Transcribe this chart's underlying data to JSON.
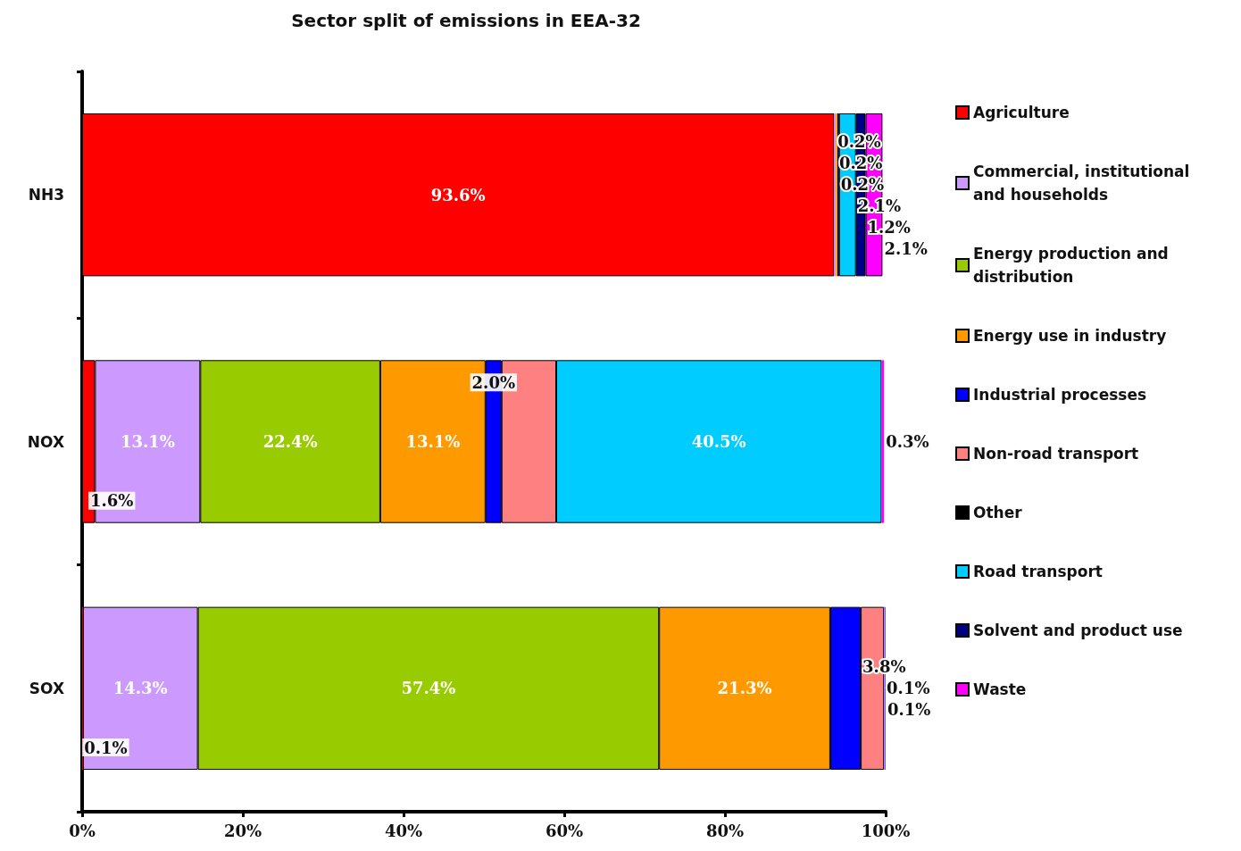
{
  "chart_data": {
    "type": "bar",
    "orientation": "horizontal",
    "stacked": true,
    "title": "Sector split of emissions in EEA-32",
    "categories": [
      "NH3",
      "NOX",
      "SOX"
    ],
    "xlim": [
      0,
      100
    ],
    "xticks": [
      {
        "value": 0,
        "label": "0%"
      },
      {
        "value": 20,
        "label": "20%"
      },
      {
        "value": 40,
        "label": "40%"
      },
      {
        "value": 60,
        "label": "60%"
      },
      {
        "value": 80,
        "label": "80%"
      },
      {
        "value": 100,
        "label": "100%"
      }
    ],
    "grid": false,
    "legend": "right",
    "series": [
      {
        "name": "Agriculture",
        "color": "#ff0000",
        "values": [
          93.6,
          1.6,
          0.1
        ],
        "value_labels": [
          "93.6%",
          "1.6%",
          "0.1%"
        ]
      },
      {
        "name": "Commercial, institutional and households",
        "color": "#cc99ff",
        "values": [
          0.2,
          13.1,
          14.3
        ],
        "value_labels": [
          "0.2%",
          "13.1%",
          "14.3%"
        ]
      },
      {
        "name": "Energy production and distribution",
        "color": "#99cc00",
        "values": [
          null,
          22.4,
          57.4
        ],
        "value_labels": [
          null,
          "22.4%",
          "57.4%"
        ]
      },
      {
        "name": "Energy use in industry",
        "color": "#ff9900",
        "values": [
          0.2,
          13.1,
          21.3
        ],
        "value_labels": [
          "0.2%",
          "13.1%",
          "21.3%"
        ]
      },
      {
        "name": "Industrial processes",
        "color": "#0000ff",
        "values": [
          null,
          2.0,
          3.8
        ],
        "value_labels": [
          null,
          "2.0%",
          "3.8%"
        ]
      },
      {
        "name": "Non-road transport",
        "color": "#ff8080",
        "values": [
          null,
          6.8,
          2.9
        ],
        "value_labels": [
          null,
          null,
          null
        ]
      },
      {
        "name": "Other",
        "color": "#000000",
        "values": [
          0.2,
          null,
          null
        ],
        "value_labels": [
          "0.2%",
          null,
          null
        ]
      },
      {
        "name": "Road transport",
        "color": "#00ccff",
        "values": [
          2.1,
          40.5,
          0.1
        ],
        "value_labels": [
          "2.1%",
          "40.5%",
          "0.1%"
        ]
      },
      {
        "name": "Solvent and product use",
        "color": "#000080",
        "values": [
          1.2,
          null,
          null
        ],
        "value_labels": [
          "1.2%",
          null,
          null
        ]
      },
      {
        "name": "Waste",
        "color": "#ff00ff",
        "values": [
          2.1,
          0.3,
          0.1
        ],
        "value_labels": [
          "2.1%",
          "0.3%",
          "0.1%"
        ]
      }
    ]
  }
}
